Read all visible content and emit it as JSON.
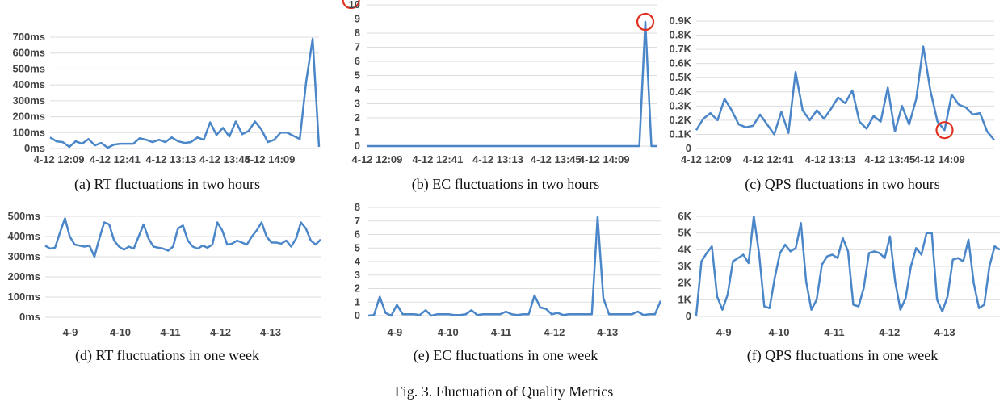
{
  "caption": "Fig. 3.  Fluctuation of Quality Metrics",
  "chart_data": [
    {
      "type": "line",
      "subcaption": "(a)  RT fluctuations in two hours",
      "ylabels": [
        "0ms",
        "100ms",
        "200ms",
        "300ms",
        "400ms",
        "500ms",
        "600ms",
        "700ms"
      ],
      "ylim": [
        0,
        700
      ],
      "xticks": [
        "4-12 12:09",
        "4-12 12:41",
        "4-12 13:13",
        "4-12 13:45",
        "4-12 14:09"
      ],
      "xlim": [
        0,
        60
      ],
      "x_tick_positions": [
        2,
        14.5,
        27,
        39,
        49
      ],
      "grid": true,
      "highlight_index": 47,
      "values": [
        70,
        45,
        40,
        10,
        45,
        30,
        60,
        20,
        35,
        5,
        25,
        30,
        30,
        30,
        65,
        55,
        40,
        55,
        40,
        70,
        45,
        35,
        40,
        70,
        55,
        165,
        85,
        130,
        75,
        170,
        90,
        110,
        170,
        120,
        40,
        55,
        100,
        100,
        80,
        60,
        420,
        690,
        10
      ]
    },
    {
      "type": "line",
      "subcaption": "(b)  EC fluctuations in two hours",
      "ylabels": [
        "0",
        "1",
        "2",
        "3",
        "4",
        "5",
        "6",
        "7",
        "8",
        "9",
        "10"
      ],
      "ylim": [
        0,
        10
      ],
      "xticks": [
        "4-12 12:09",
        "4-12 12:41",
        "4-12 13:13",
        "4-12 13:45",
        "4-12 14:09"
      ],
      "xlim": [
        0,
        60
      ],
      "x_tick_positions": [
        2,
        14.5,
        27,
        39,
        49
      ],
      "grid": true,
      "highlight_index": 46,
      "values": [
        0,
        0,
        0,
        0,
        0,
        0,
        0,
        0,
        0,
        0,
        0,
        0,
        0,
        0,
        0,
        0,
        0,
        0,
        0,
        0,
        0,
        0,
        0,
        0,
        0,
        0,
        0,
        0,
        0,
        0,
        0,
        0,
        0,
        0,
        0,
        0,
        0,
        0,
        0,
        0,
        0,
        0,
        0,
        0,
        0,
        0,
        8.8,
        0,
        0
      ]
    },
    {
      "type": "line",
      "subcaption": "(c)  QPS fluctuations in two hours",
      "ylabels": [
        "0",
        "0.1K",
        "0.2K",
        "0.3K",
        "0.4K",
        "0.5K",
        "0.6K",
        "0.7K",
        "0.8K",
        "0.9K"
      ],
      "ylim": [
        0,
        900
      ],
      "xticks": [
        "4-12 12:09",
        "4-12 12:41",
        "4-12 13:13",
        "4-12 13:45",
        "4-12 14:09"
      ],
      "xlim": [
        0,
        60
      ],
      "x_tick_positions": [
        2,
        14.5,
        27,
        39,
        49
      ],
      "grid": true,
      "highlight_index": 35,
      "values": [
        130,
        210,
        250,
        200,
        350,
        270,
        170,
        150,
        160,
        240,
        170,
        100,
        260,
        110,
        540,
        270,
        200,
        270,
        210,
        280,
        360,
        320,
        410,
        190,
        140,
        230,
        190,
        430,
        120,
        300,
        170,
        350,
        720,
        410,
        190,
        130,
        380,
        310,
        290,
        240,
        250,
        120,
        60
      ]
    },
    {
      "type": "line",
      "subcaption": "(d)  RT fluctuations in one week",
      "ylabels": [
        "0ms",
        "100ms",
        "200ms",
        "300ms",
        "400ms",
        "500ms"
      ],
      "ylim": [
        0,
        500
      ],
      "xticks": [
        "4-9",
        "4-10",
        "4-11",
        "4-12",
        "4-13"
      ],
      "xlim": [
        0,
        5.5
      ],
      "x_tick_positions": [
        0.5,
        1.5,
        2.5,
        3.5,
        4.5
      ],
      "grid": true,
      "values": [
        355,
        340,
        345,
        420,
        490,
        400,
        360,
        355,
        350,
        355,
        300,
        390,
        470,
        460,
        380,
        350,
        335,
        350,
        340,
        400,
        460,
        390,
        350,
        345,
        340,
        330,
        350,
        440,
        455,
        380,
        350,
        340,
        355,
        345,
        360,
        470,
        430,
        360,
        365,
        380,
        370,
        360,
        400,
        430,
        470,
        400,
        370,
        370,
        365,
        380,
        350,
        390,
        470,
        440,
        380,
        360,
        385
      ]
    },
    {
      "type": "line",
      "subcaption": "(e)  EC fluctuations in one week",
      "ylabels": [
        "0",
        "1",
        "2",
        "3",
        "4",
        "5",
        "6",
        "7",
        "8"
      ],
      "ylim": [
        0,
        8
      ],
      "xticks": [
        "4-9",
        "4-10",
        "4-11",
        "4-12",
        "4-13"
      ],
      "xlim": [
        0,
        5.5
      ],
      "x_tick_positions": [
        0.5,
        1.5,
        2.5,
        3.5,
        4.5
      ],
      "grid": true,
      "values": [
        0,
        0.05,
        1.4,
        0.2,
        0,
        0.8,
        0.1,
        0.1,
        0.1,
        0.05,
        0.4,
        0,
        0.1,
        0.1,
        0.1,
        0.05,
        0.05,
        0.1,
        0.4,
        0.05,
        0.1,
        0.1,
        0.1,
        0.1,
        0.3,
        0.1,
        0.05,
        0.1,
        0.1,
        1.5,
        0.6,
        0.5,
        0.1,
        0.2,
        0.05,
        0.1,
        0.1,
        0.1,
        0.1,
        0.1,
        7.3,
        1.3,
        0.1,
        0.1,
        0.1,
        0.1,
        0.1,
        0.3,
        0.05,
        0.1,
        0.1,
        1.1
      ]
    },
    {
      "type": "line",
      "subcaption": "(f)  QPS fluctuations in one week",
      "ylabels": [
        "0",
        "1K",
        "2K",
        "3K",
        "4K",
        "5K",
        "6K"
      ],
      "ylim": [
        0,
        6000
      ],
      "xticks": [
        "4-9",
        "4-10",
        "4-11",
        "4-12",
        "4-13"
      ],
      "xlim": [
        0,
        5.5
      ],
      "x_tick_positions": [
        0.5,
        1.5,
        2.5,
        3.5,
        4.5
      ],
      "grid": true,
      "values": [
        50,
        3300,
        3800,
        4200,
        1200,
        400,
        1300,
        3300,
        3500,
        3700,
        3200,
        6000,
        3800,
        600,
        500,
        2300,
        3800,
        4300,
        3900,
        4100,
        5600,
        2100,
        400,
        1000,
        3100,
        3600,
        3700,
        3500,
        4700,
        3900,
        700,
        600,
        1700,
        3800,
        3900,
        3800,
        3500,
        4800,
        2100,
        400,
        1100,
        3000,
        4100,
        3700,
        5000,
        5000,
        1000,
        300,
        1200,
        3400,
        3500,
        3300,
        4600,
        2000,
        500,
        700,
        3000,
        4200,
        4000
      ]
    }
  ]
}
